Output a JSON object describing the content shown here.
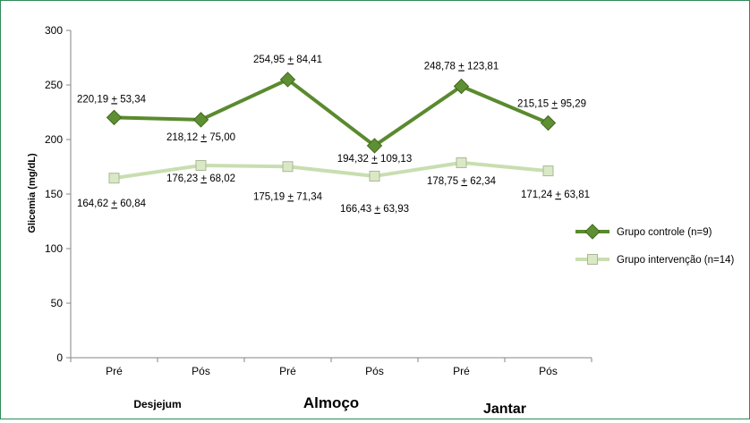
{
  "chart_data": {
    "type": "line",
    "ylabel": "Glicemia (mg/dL)",
    "ylim": [
      0,
      300
    ],
    "yticks": [
      0,
      50,
      100,
      150,
      200,
      250,
      300
    ],
    "categories": [
      "Pré",
      "Pós",
      "Pré",
      "Pós",
      "Pré",
      "Pós"
    ],
    "groups": [
      "Desjejum",
      "Almoço",
      "Jantar"
    ],
    "grid": false,
    "legend_position": "right",
    "series": [
      {
        "name": "Grupo controle (n=9)",
        "values": [
          220.19,
          218.12,
          254.95,
          194.32,
          248.78,
          215.15
        ],
        "labels": [
          "220,19 + 53,34",
          "218,12 + 75,00",
          "254,95 + 84,41",
          "194,32 + 109,13",
          "248,78 + 123,81",
          "215,15 + 95,29"
        ],
        "color": "#5a8a2e",
        "marker": "diamond"
      },
      {
        "name": "Grupo intervenção (n=14)",
        "values": [
          164.62,
          176.23,
          175.19,
          166.43,
          178.75,
          171.24
        ],
        "labels": [
          "164,62 + 60,84",
          "176,23 + 68,02",
          "175,19 + 71,34",
          "166,43 + 63,93",
          "178,75 + 62,34",
          "171,24 + 63,81"
        ],
        "color": "#c9deb0",
        "marker": "square"
      }
    ]
  }
}
